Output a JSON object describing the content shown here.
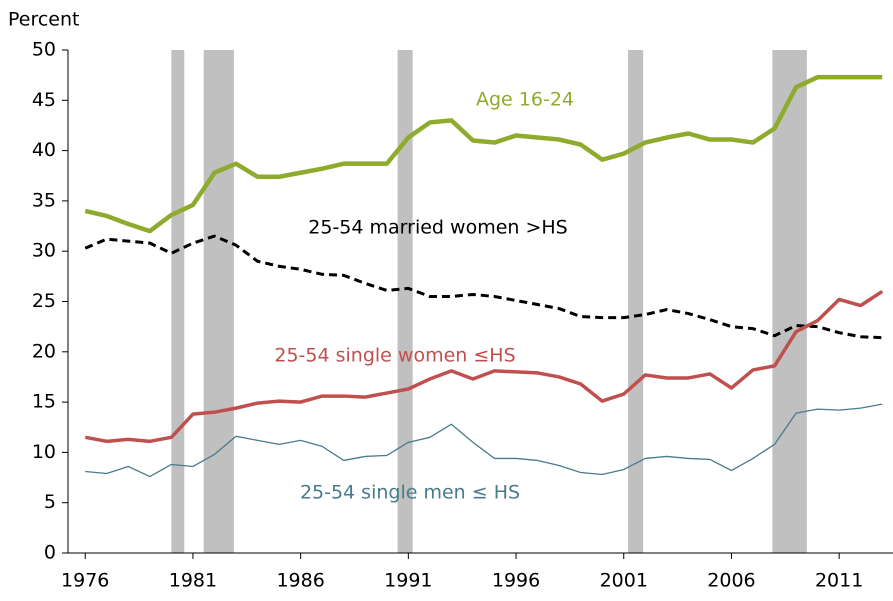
{
  "chart_data": {
    "type": "line",
    "ylabel": "Percent",
    "x": [
      1976,
      1977,
      1978,
      1979,
      1980,
      1981,
      1982,
      1983,
      1984,
      1985,
      1986,
      1987,
      1988,
      1989,
      1990,
      1991,
      1992,
      1993,
      1994,
      1995,
      1996,
      1997,
      1998,
      1999,
      2000,
      2001,
      2002,
      2003,
      2004,
      2005,
      2006,
      2007,
      2008,
      2009,
      2010,
      2011,
      2012,
      2013
    ],
    "series": [
      {
        "name": "Age 16-24",
        "color": "#8fab2e",
        "width": 4.5,
        "dashed": false,
        "values": [
          34,
          33.5,
          32.7,
          32,
          33.6,
          34.6,
          37.8,
          38.7,
          37.4,
          37.4,
          37.8,
          38.2,
          38.7,
          38.7,
          38.7,
          41.3,
          42.8,
          43,
          41,
          40.8,
          41.5,
          41.3,
          41.1,
          40.6,
          39.1,
          39.7,
          40.8,
          41.3,
          41.7,
          41.1,
          41.1,
          40.8,
          42.2,
          46.3,
          47.3,
          47.3,
          47.3,
          47.3
        ]
      },
      {
        "name": "25-54 married women >HS",
        "color": "#000000",
        "width": 3,
        "dashed": true,
        "values": [
          30.3,
          31.2,
          31,
          30.8,
          29.8,
          30.8,
          31.5,
          30.6,
          29,
          28.5,
          28.2,
          27.7,
          27.6,
          26.8,
          26.1,
          26.3,
          25.5,
          25.5,
          25.7,
          25.5,
          25.1,
          24.7,
          24.3,
          23.5,
          23.4,
          23.4,
          23.7,
          24.2,
          23.8,
          23.2,
          22.5,
          22.3,
          21.6,
          22.6,
          22.5,
          21.9,
          21.5,
          21.4
        ]
      },
      {
        "name": "25-54 single women ≤HS",
        "color": "#c0504d",
        "width": 3.5,
        "dashed": false,
        "values": [
          11.5,
          11.1,
          11.3,
          11.1,
          11.5,
          13.8,
          14,
          14.4,
          14.9,
          15.1,
          15,
          15.6,
          15.6,
          15.5,
          15.9,
          16.3,
          17.3,
          18.1,
          17.3,
          18.1,
          18,
          17.9,
          17.5,
          16.8,
          15.1,
          15.8,
          17.7,
          17.4,
          17.4,
          17.8,
          16.4,
          18.2,
          18.6,
          22,
          23.1,
          25.2,
          24.6,
          26
        ]
      },
      {
        "name": "25-54 single men ≤ HS",
        "color": "#4a7b8c",
        "width": 1.3,
        "dashed": false,
        "values": [
          8.1,
          7.9,
          8.6,
          7.6,
          8.8,
          8.6,
          9.8,
          11.6,
          11.2,
          10.8,
          11.2,
          10.6,
          9.2,
          9.6,
          9.7,
          11,
          11.5,
          12.8,
          11,
          9.4,
          9.4,
          9.2,
          8.7,
          8,
          7.8,
          8.3,
          9.4,
          9.6,
          9.4,
          9.3,
          8.2,
          9.4,
          10.8,
          13.9,
          14.3,
          14.2,
          14.4,
          14.8
        ]
      }
    ],
    "shaded_periods": [
      [
        1980.0,
        1980.6
      ],
      [
        1981.5,
        1982.9
      ],
      [
        1990.5,
        1991.2
      ],
      [
        2001.2,
        2001.9
      ],
      [
        2007.9,
        2009.5
      ]
    ],
    "shade_color": "#c0c0c0",
    "xlim": [
      1975.2,
      2013.5
    ],
    "xticks": [
      1976,
      1981,
      1986,
      1991,
      1996,
      2001,
      2006,
      2011
    ],
    "ylim": [
      0,
      50
    ],
    "yticks": [
      0,
      5,
      10,
      15,
      20,
      25,
      30,
      35,
      40,
      45,
      50
    ],
    "grid": false
  }
}
